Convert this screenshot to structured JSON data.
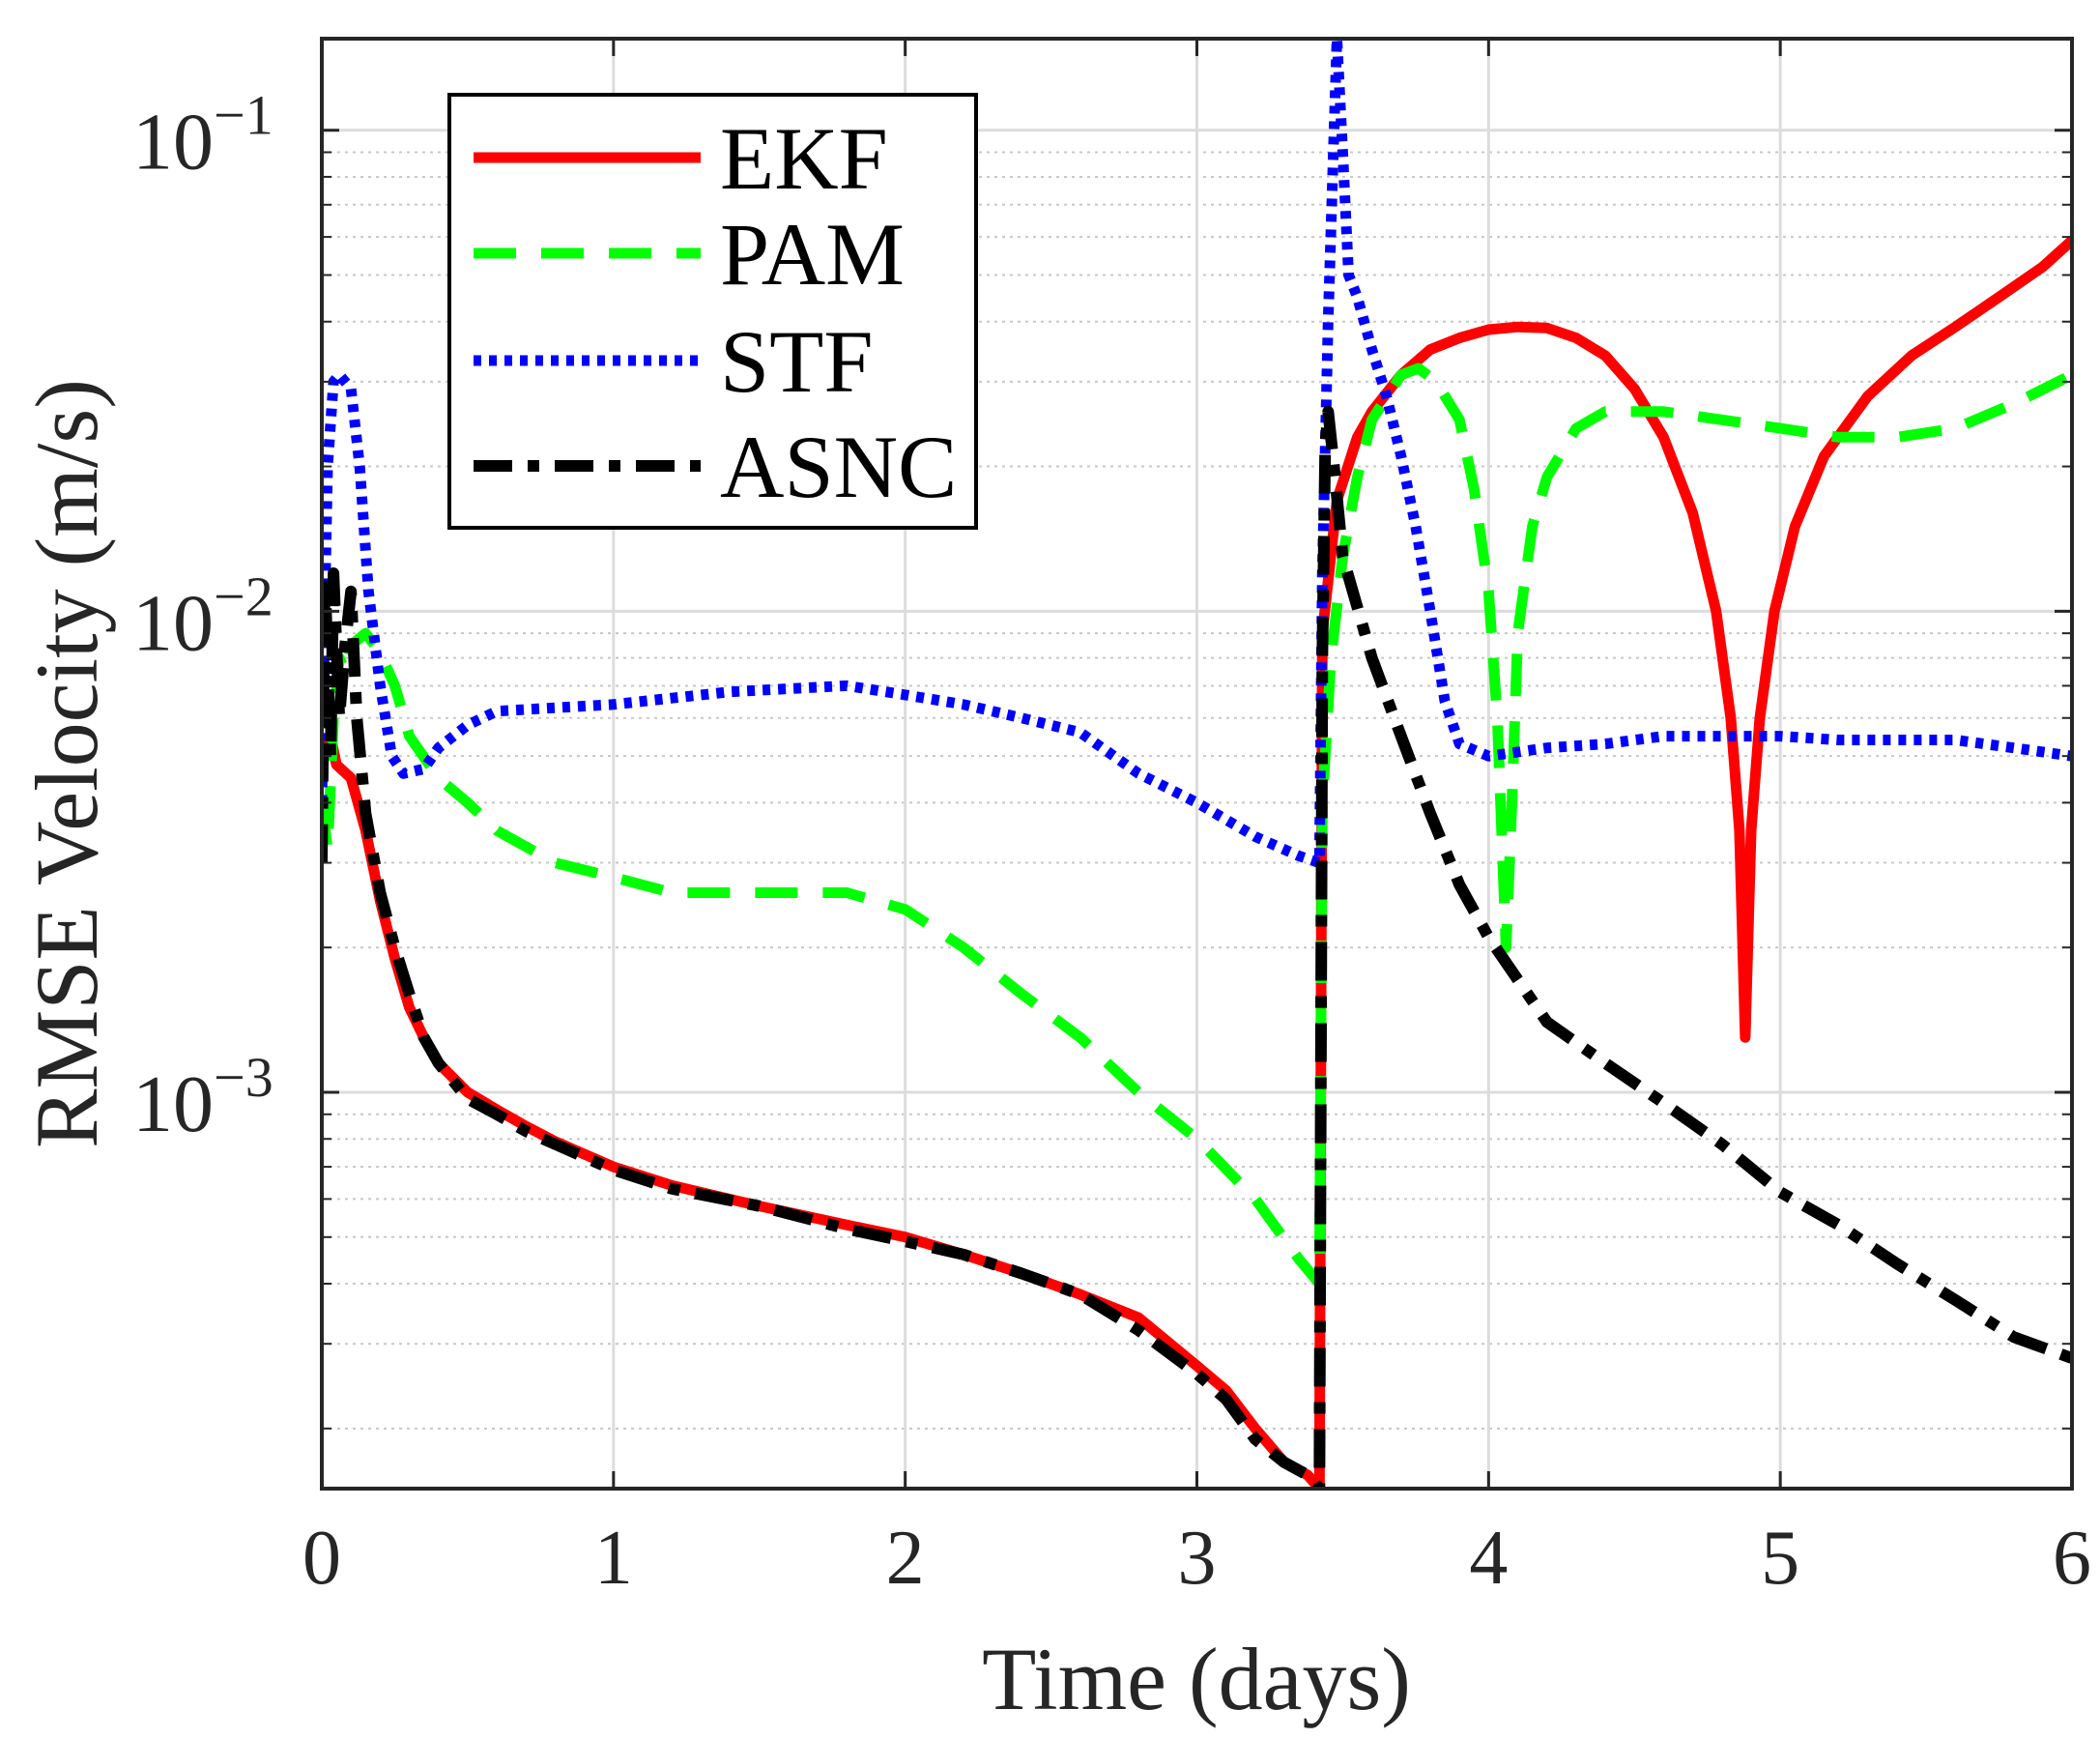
{
  "chart_data": {
    "type": "line",
    "title": "",
    "xlabel": "Time (days)",
    "ylabel": "RMSE Velocity (m/s)",
    "xlim": [
      0,
      6
    ],
    "ylim": [
      0.00015,
      0.155
    ],
    "yscale": "log",
    "grid": true,
    "legend_position": "top-left",
    "x_ticks": [
      0,
      1,
      2,
      3,
      4,
      5,
      6
    ],
    "x_tick_labels": [
      "0",
      "1",
      "2",
      "3",
      "4",
      "5",
      "6"
    ],
    "y_ticks": [
      {
        "value": 0.001,
        "base": "10",
        "exp": "−3"
      },
      {
        "value": 0.01,
        "base": "10",
        "exp": "−2"
      },
      {
        "value": 0.1,
        "base": "10",
        "exp": "−1"
      }
    ],
    "series": [
      {
        "name": "EKF",
        "color": "#ff0000",
        "dash": "solid",
        "points": [
          [
            0,
            0.005
          ],
          [
            0.03,
            0.0055
          ],
          [
            0.05,
            0.0048
          ],
          [
            0.1,
            0.0045
          ],
          [
            0.15,
            0.0035
          ],
          [
            0.2,
            0.0025
          ],
          [
            0.25,
            0.0019
          ],
          [
            0.3,
            0.0015
          ],
          [
            0.35,
            0.0013
          ],
          [
            0.4,
            0.00115
          ],
          [
            0.5,
            0.001
          ],
          [
            0.6,
            0.00092
          ],
          [
            0.7,
            0.00085
          ],
          [
            0.8,
            0.00079
          ],
          [
            1.0,
            0.0007
          ],
          [
            1.2,
            0.00064
          ],
          [
            1.5,
            0.00058
          ],
          [
            1.8,
            0.00053
          ],
          [
            2.0,
            0.0005
          ],
          [
            2.2,
            0.00046
          ],
          [
            2.4,
            0.00042
          ],
          [
            2.6,
            0.00038
          ],
          [
            2.8,
            0.00034
          ],
          [
            3.0,
            0.00027
          ],
          [
            3.1,
            0.00024
          ],
          [
            3.2,
            0.0002
          ],
          [
            3.3,
            0.00017
          ],
          [
            3.38,
            0.00016
          ],
          [
            3.42,
            0.00015
          ],
          [
            3.43,
            0.009
          ],
          [
            3.48,
            0.017
          ],
          [
            3.55,
            0.023
          ],
          [
            3.6,
            0.026
          ],
          [
            3.7,
            0.031
          ],
          [
            3.8,
            0.035
          ],
          [
            3.9,
            0.037
          ],
          [
            4.0,
            0.0385
          ],
          [
            4.1,
            0.039
          ],
          [
            4.2,
            0.0388
          ],
          [
            4.3,
            0.037
          ],
          [
            4.4,
            0.034
          ],
          [
            4.5,
            0.029
          ],
          [
            4.6,
            0.023
          ],
          [
            4.7,
            0.016
          ],
          [
            4.78,
            0.01
          ],
          [
            4.83,
            0.006
          ],
          [
            4.86,
            0.0035
          ],
          [
            4.88,
            0.0013
          ],
          [
            4.9,
            0.0035
          ],
          [
            4.93,
            0.006
          ],
          [
            4.98,
            0.01
          ],
          [
            5.05,
            0.015
          ],
          [
            5.15,
            0.021
          ],
          [
            5.3,
            0.028
          ],
          [
            5.45,
            0.034
          ],
          [
            5.6,
            0.039
          ],
          [
            5.75,
            0.045
          ],
          [
            5.9,
            0.052
          ],
          [
            6.0,
            0.059
          ]
        ]
      },
      {
        "name": "PAM",
        "color": "#00ff00",
        "dash": "dashed",
        "points": [
          [
            0,
            0.004
          ],
          [
            0.02,
            0.0032
          ],
          [
            0.04,
            0.006
          ],
          [
            0.06,
            0.008
          ],
          [
            0.08,
            0.0075
          ],
          [
            0.1,
            0.0085
          ],
          [
            0.15,
            0.009
          ],
          [
            0.2,
            0.0082
          ],
          [
            0.25,
            0.007
          ],
          [
            0.3,
            0.0055
          ],
          [
            0.4,
            0.0045
          ],
          [
            0.5,
            0.004
          ],
          [
            0.6,
            0.0035
          ],
          [
            0.8,
            0.003
          ],
          [
            1.0,
            0.0028
          ],
          [
            1.2,
            0.0026
          ],
          [
            1.5,
            0.0026
          ],
          [
            1.8,
            0.0026
          ],
          [
            2.0,
            0.0024
          ],
          [
            2.2,
            0.002
          ],
          [
            2.4,
            0.0016
          ],
          [
            2.6,
            0.0013
          ],
          [
            2.8,
            0.001
          ],
          [
            3.0,
            0.0008
          ],
          [
            3.2,
            0.0006
          ],
          [
            3.35,
            0.00045
          ],
          [
            3.42,
            0.0004
          ],
          [
            3.43,
            0.004
          ],
          [
            3.46,
            0.008
          ],
          [
            3.5,
            0.013
          ],
          [
            3.55,
            0.019
          ],
          [
            3.6,
            0.025
          ],
          [
            3.7,
            0.031
          ],
          [
            3.76,
            0.032
          ],
          [
            3.82,
            0.03
          ],
          [
            3.9,
            0.025
          ],
          [
            3.95,
            0.018
          ],
          [
            4.0,
            0.011
          ],
          [
            4.03,
            0.006
          ],
          [
            4.06,
            0.002
          ],
          [
            4.08,
            0.004
          ],
          [
            4.1,
            0.009
          ],
          [
            4.15,
            0.015
          ],
          [
            4.2,
            0.019
          ],
          [
            4.3,
            0.024
          ],
          [
            4.4,
            0.026
          ],
          [
            4.6,
            0.026
          ],
          [
            4.8,
            0.025
          ],
          [
            5.0,
            0.024
          ],
          [
            5.2,
            0.023
          ],
          [
            5.4,
            0.023
          ],
          [
            5.6,
            0.024
          ],
          [
            5.8,
            0.027
          ],
          [
            6.0,
            0.031
          ]
        ]
      },
      {
        "name": "STF",
        "color": "#0000ff",
        "dash": "dotted",
        "points": [
          [
            0,
            0.004
          ],
          [
            0.01,
            0.01
          ],
          [
            0.02,
            0.02
          ],
          [
            0.04,
            0.03
          ],
          [
            0.06,
            0.031
          ],
          [
            0.08,
            0.03
          ],
          [
            0.1,
            0.029
          ],
          [
            0.13,
            0.02
          ],
          [
            0.16,
            0.011
          ],
          [
            0.2,
            0.007
          ],
          [
            0.24,
            0.005
          ],
          [
            0.28,
            0.0046
          ],
          [
            0.35,
            0.0047
          ],
          [
            0.4,
            0.0052
          ],
          [
            0.5,
            0.0058
          ],
          [
            0.6,
            0.0062
          ],
          [
            0.8,
            0.0063
          ],
          [
            1.0,
            0.0064
          ],
          [
            1.2,
            0.0066
          ],
          [
            1.4,
            0.0068
          ],
          [
            1.6,
            0.0069
          ],
          [
            1.8,
            0.007
          ],
          [
            2.0,
            0.0067
          ],
          [
            2.2,
            0.0064
          ],
          [
            2.4,
            0.006
          ],
          [
            2.6,
            0.0056
          ],
          [
            2.8,
            0.0046
          ],
          [
            3.0,
            0.004
          ],
          [
            3.2,
            0.0034
          ],
          [
            3.35,
            0.0031
          ],
          [
            3.42,
            0.003
          ],
          [
            3.43,
            0.012
          ],
          [
            3.45,
            0.04
          ],
          [
            3.47,
            0.1
          ],
          [
            3.48,
            0.155
          ],
          [
            3.5,
            0.09
          ],
          [
            3.52,
            0.05
          ],
          [
            3.55,
            0.045
          ],
          [
            3.6,
            0.035
          ],
          [
            3.65,
            0.028
          ],
          [
            3.7,
            0.021
          ],
          [
            3.75,
            0.015
          ],
          [
            3.8,
            0.01
          ],
          [
            3.85,
            0.0065
          ],
          [
            3.9,
            0.0053
          ],
          [
            4.0,
            0.005
          ],
          [
            4.2,
            0.0052
          ],
          [
            4.4,
            0.0053
          ],
          [
            4.6,
            0.0055
          ],
          [
            4.8,
            0.0055
          ],
          [
            5.0,
            0.0055
          ],
          [
            5.2,
            0.0054
          ],
          [
            5.4,
            0.0054
          ],
          [
            5.6,
            0.0054
          ],
          [
            5.8,
            0.0052
          ],
          [
            6.0,
            0.005
          ]
        ]
      },
      {
        "name": "ASNC",
        "color": "#000000",
        "dash": "dashdot",
        "points": [
          [
            0,
            0.003
          ],
          [
            0.01,
            0.012
          ],
          [
            0.02,
            0.008
          ],
          [
            0.03,
            0.005
          ],
          [
            0.04,
            0.012
          ],
          [
            0.06,
            0.006
          ],
          [
            0.08,
            0.0085
          ],
          [
            0.1,
            0.011
          ],
          [
            0.12,
            0.006
          ],
          [
            0.15,
            0.0038
          ],
          [
            0.2,
            0.0026
          ],
          [
            0.25,
            0.002
          ],
          [
            0.3,
            0.0016
          ],
          [
            0.35,
            0.0013
          ],
          [
            0.4,
            0.00115
          ],
          [
            0.5,
            0.00097
          ],
          [
            0.6,
            0.0009
          ],
          [
            0.7,
            0.00083
          ],
          [
            0.8,
            0.00078
          ],
          [
            1.0,
            0.00069
          ],
          [
            1.2,
            0.00063
          ],
          [
            1.5,
            0.00058
          ],
          [
            1.8,
            0.00052
          ],
          [
            2.0,
            0.00049
          ],
          [
            2.2,
            0.00046
          ],
          [
            2.4,
            0.00042
          ],
          [
            2.6,
            0.00038
          ],
          [
            2.8,
            0.00032
          ],
          [
            3.0,
            0.00026
          ],
          [
            3.1,
            0.00023
          ],
          [
            3.2,
            0.00019
          ],
          [
            3.3,
            0.00017
          ],
          [
            3.38,
            0.00016
          ],
          [
            3.42,
            0.00015
          ],
          [
            3.43,
            0.008
          ],
          [
            3.44,
            0.022
          ],
          [
            3.45,
            0.026
          ],
          [
            3.47,
            0.02
          ],
          [
            3.5,
            0.013
          ],
          [
            3.6,
            0.008
          ],
          [
            3.7,
            0.0055
          ],
          [
            3.8,
            0.0038
          ],
          [
            3.9,
            0.0027
          ],
          [
            4.0,
            0.0021
          ],
          [
            4.2,
            0.0014
          ],
          [
            4.4,
            0.00115
          ],
          [
            4.6,
            0.00095
          ],
          [
            4.8,
            0.00078
          ],
          [
            5.0,
            0.00062
          ],
          [
            5.2,
            0.00053
          ],
          [
            5.4,
            0.00044
          ],
          [
            5.6,
            0.00037
          ],
          [
            5.8,
            0.00031
          ],
          [
            6.0,
            0.00028
          ]
        ]
      }
    ]
  }
}
